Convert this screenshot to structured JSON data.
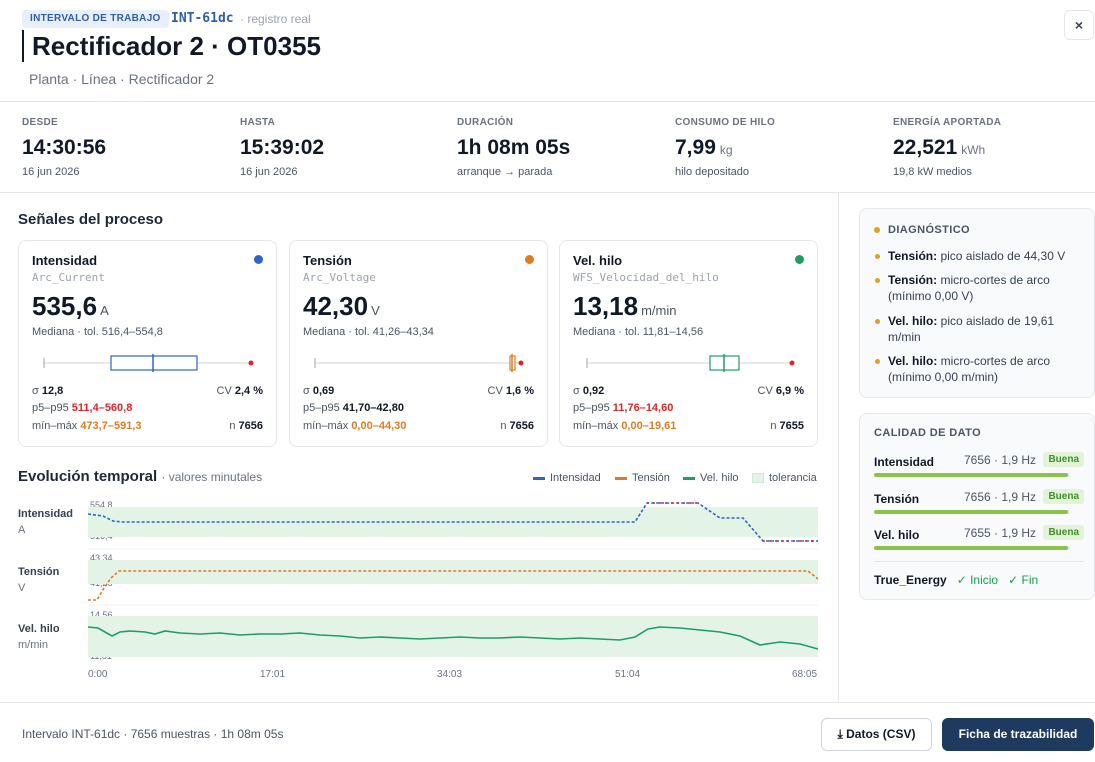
{
  "header": {
    "tag": "INTERVALO DE TRABAJO",
    "interval_id": "INT-61dc",
    "record": "· registro real",
    "title": "Rectificador 2 · OT0355",
    "breadcrumb": "Planta · Línea · Rectificador 2",
    "close_label": "×"
  },
  "kpis": [
    {
      "label": "DESDE",
      "value": "14:30:56",
      "unit": "",
      "sub": "16 jun 2026"
    },
    {
      "label": "HASTA",
      "value": "15:39:02",
      "unit": "",
      "sub": "16 jun 2026"
    },
    {
      "label": "DURACIÓN",
      "value": "1h 08m 05s",
      "unit": "",
      "sub": "arranque → parada"
    },
    {
      "label": "CONSUMO DE HILO",
      "value": "7,99",
      "unit": "kg",
      "sub": "hilo depositado"
    },
    {
      "label": "ENERGÍA APORTADA",
      "value": "22,521",
      "unit": "kWh",
      "sub": "19,8 kW medios"
    }
  ],
  "signals_title": "Señales del proceso",
  "signals": [
    {
      "name": "Intensidad",
      "code": "Arc_Current",
      "value": "535,6",
      "unit": "A",
      "color": "#2f64c9",
      "median": "Mediana · tol. 516,4–554,8",
      "sigma": "12,8",
      "cv": "2,4 %",
      "p_range": "511,4–560,8",
      "minmax": "473,7–591,3",
      "n": "7656"
    },
    {
      "name": "Tensión",
      "code": "Arc_Voltage",
      "value": "42,30",
      "unit": "V",
      "color": "#e07b24",
      "median": "Mediana · tol. 41,26–43,34",
      "sigma": "0,69",
      "cv": "1,6 %",
      "p_range": "41,70–42,80",
      "minmax": "0,00–44,30",
      "n": "7656"
    },
    {
      "name": "Vel. hilo",
      "code": "WFS_Velocidad_del_hilo",
      "value": "13,18",
      "unit": "m/min",
      "color": "#1f9d63",
      "median": "Mediana · tol. 11,81–14,56",
      "sigma": "0,92",
      "cv": "6,9 %",
      "p_range": "11,76–14,60",
      "minmax": "0,00–19,61",
      "n": "7655"
    }
  ],
  "stat_labels": {
    "sigma": "σ",
    "cv": "CV",
    "p": "p5–p95",
    "minmax": "mín–máx",
    "n": "n"
  },
  "evolution": {
    "title": "Evolución temporal",
    "subtitle": "· valores minutales",
    "legend": [
      "Intensidad",
      "Tensión",
      "Vel. hilo",
      "tolerancia"
    ],
    "tracks": [
      {
        "label": "Intensidad",
        "unit": "A",
        "hi": "554,8",
        "lo": "516,4"
      },
      {
        "label": "Tensión",
        "unit": "V",
        "hi": "43,34",
        "lo": "41,26"
      },
      {
        "label": "Vel. hilo",
        "unit": "m/min",
        "hi": "14,56",
        "lo": "11,81"
      }
    ],
    "x_ticks": [
      "0:00",
      "17:01",
      "34:03",
      "51:04",
      "68:05"
    ]
  },
  "diagnostic": {
    "title": "DIAGNÓSTICO",
    "items": [
      {
        "b": "Tensión:",
        "t": " pico aislado de 44,30 V"
      },
      {
        "b": "Tensión:",
        "t": " micro-cortes de arco (mínimo 0,00 V)"
      },
      {
        "b": "Vel. hilo:",
        "t": " pico aislado de 19,61 m/min"
      },
      {
        "b": "Vel. hilo:",
        "t": " micro-cortes de arco (mínimo 0,00 m/min)"
      }
    ]
  },
  "quality": {
    "title": "CALIDAD DE DATO",
    "rows": [
      {
        "name": "Intensidad",
        "meta": "7656 · 1,9 Hz",
        "badge": "Buena",
        "fill": 0.99
      },
      {
        "name": "Tensión",
        "meta": "7656 · 1,9 Hz",
        "badge": "Buena",
        "fill": 0.99
      },
      {
        "name": "Vel. hilo",
        "meta": "7655 · 1,9 Hz",
        "badge": "Buena",
        "fill": 0.99
      }
    ],
    "true_energy": "True_Energy",
    "start": "✓ Inicio",
    "end": "✓ Fin"
  },
  "footer": {
    "info": "Intervalo INT-61dc · 7656 muestras · 1h 08m 05s",
    "csv": "⤓ Datos (CSV)",
    "ficha": "Ficha de trazabilidad"
  }
}
